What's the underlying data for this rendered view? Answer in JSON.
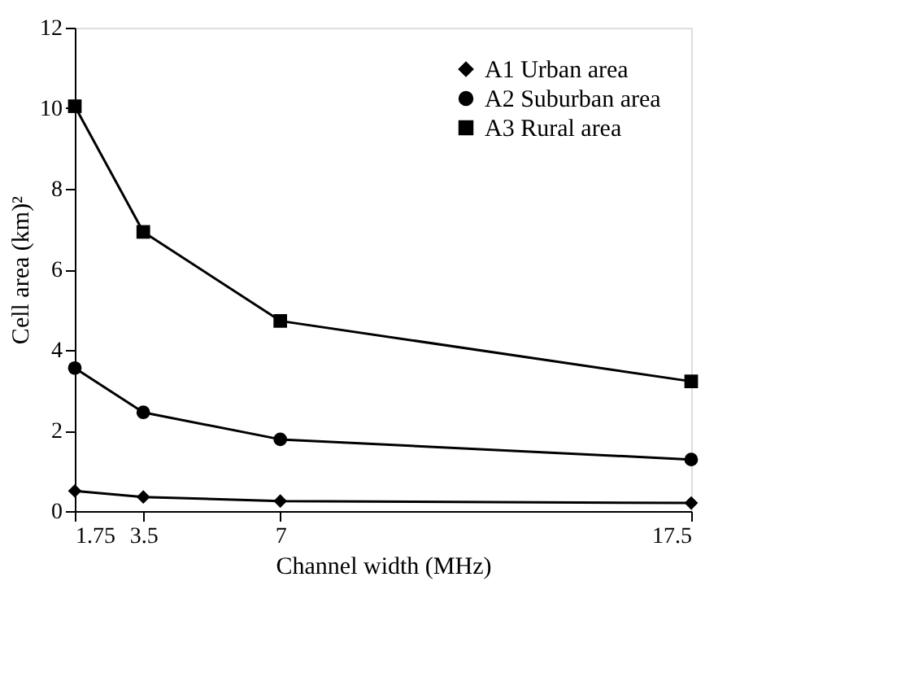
{
  "chart_data": {
    "type": "line",
    "xlabel": "Channel width (MHz)",
    "ylabel": "Cell area (km)²",
    "x": [
      1.75,
      3.5,
      7,
      17.5
    ],
    "xlim": [
      1.75,
      17.5
    ],
    "xticks": [
      1.75,
      3.5,
      7,
      17.5
    ],
    "ylim": [
      0,
      12
    ],
    "yticks": [
      0,
      2,
      4,
      6,
      8,
      10,
      12
    ],
    "grid": false,
    "legend": "top right",
    "series": [
      {
        "name": "A1 Urban area",
        "color": "#000000",
        "marker": "diamond",
        "values": [
          0.5,
          0.35,
          0.25,
          0.2
        ]
      },
      {
        "name": "A2 Suburban area",
        "color": "#000000",
        "marker": "circle",
        "values": [
          3.55,
          2.45,
          1.78,
          1.28
        ]
      },
      {
        "name": "A3 Rural area",
        "color": "#000000",
        "marker": "square",
        "values": [
          10.05,
          6.93,
          4.72,
          3.22
        ]
      }
    ]
  }
}
